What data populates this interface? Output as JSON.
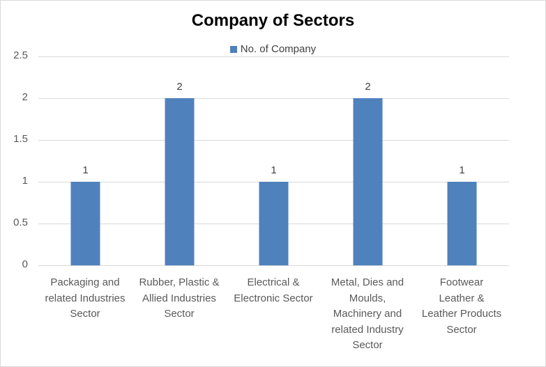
{
  "chart_data": {
    "type": "bar",
    "title": "Company of Sectors",
    "xlabel": "",
    "ylabel": "",
    "ylim": [
      0,
      2.5
    ],
    "yticks": [
      "0",
      "0.5",
      "1",
      "1.5",
      "2",
      "2.5"
    ],
    "grid": true,
    "legend_position": "top",
    "categories": [
      "Packaging and\nrelated Industries\nSector",
      "Rubber, Plastic &\nAllied Industries\nSector",
      "Electrical &\nElectronic Sector",
      "Metal, Dies and\nMoulds,\nMachinery and\nrelated Industry\nSector",
      "Footwear\nLeather &\nLeather Products\nSector"
    ],
    "series": [
      {
        "name": "No. of Company",
        "color": "#4f81bd",
        "values": [
          1,
          2,
          1,
          2,
          1
        ],
        "data_labels": [
          "1",
          "2",
          "1",
          "2",
          "1"
        ]
      }
    ]
  }
}
